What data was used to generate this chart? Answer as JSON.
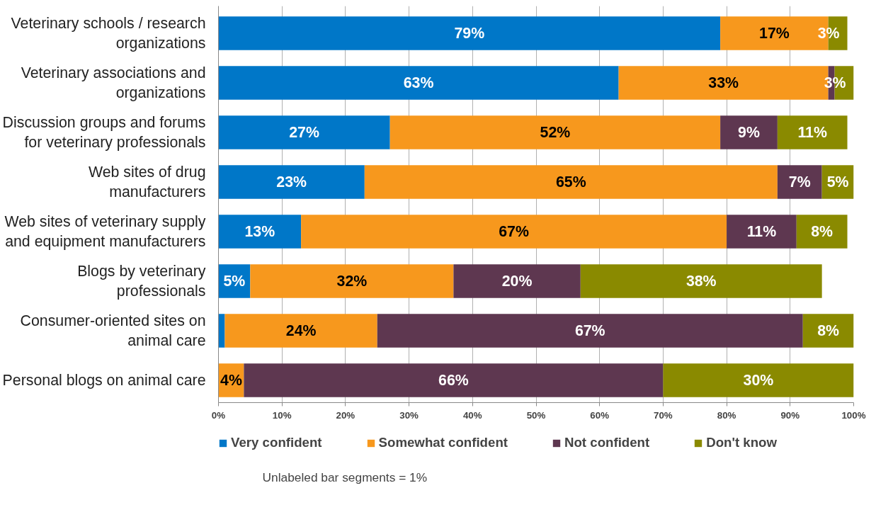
{
  "chart_data": {
    "type": "bar",
    "orientation": "horizontal",
    "stacked": true,
    "categories": [
      "Veterinary schools / research organizations",
      "Veterinary associations and organizations",
      "Discussion groups and forums for veterinary professionals",
      "Web sites of drug manufacturers",
      "Web sites of veterinary supply and equipment manufacturers",
      "Blogs by veterinary professionals",
      "Consumer-oriented sites on animal care",
      "Personal blogs on animal care"
    ],
    "series": [
      {
        "name": "Very confident",
        "color": "#0077c8",
        "values": [
          79,
          63,
          27,
          23,
          13,
          5,
          1,
          null
        ],
        "value_labels": [
          "79%",
          "63%",
          "27%",
          "23%",
          "13%",
          "5%",
          null,
          null
        ]
      },
      {
        "name": "Somewhat confident",
        "color": "#f7981d",
        "values": [
          17,
          33,
          52,
          65,
          67,
          32,
          24,
          4
        ],
        "value_labels": [
          "17%",
          "33%",
          "52%",
          "65%",
          "67%",
          "32%",
          "24%",
          "4%"
        ]
      },
      {
        "name": "Not confident",
        "color": "#5e3750",
        "values": [
          null,
          1,
          9,
          7,
          11,
          20,
          67,
          66
        ],
        "value_labels": [
          null,
          null,
          "9%",
          "7%",
          "11%",
          "20%",
          "67%",
          "66%"
        ]
      },
      {
        "name": "Don't know",
        "color": "#8a8a00",
        "values": [
          3,
          3,
          11,
          5,
          8,
          38,
          8,
          30
        ],
        "value_labels": [
          "3%",
          "3%",
          "11%",
          "5%",
          "8%",
          "38%",
          "8%",
          "30%"
        ]
      }
    ],
    "xlim": [
      0,
      100
    ],
    "xticks": [
      {
        "value": 0,
        "label": "0%"
      },
      {
        "value": 10,
        "label": "10%"
      },
      {
        "value": 20,
        "label": "20%"
      },
      {
        "value": 30,
        "label": "30%"
      },
      {
        "value": 40,
        "label": "40%"
      },
      {
        "value": 50,
        "label": "50%"
      },
      {
        "value": 60,
        "label": "60%"
      },
      {
        "value": 70,
        "label": "70%"
      },
      {
        "value": 80,
        "label": "80%"
      },
      {
        "value": 90,
        "label": "90%"
      },
      {
        "value": 100,
        "label": "100%"
      }
    ],
    "grid": "x",
    "legend": "bottom",
    "annotations": [
      "Unlabeled bar segments = 1%"
    ]
  }
}
